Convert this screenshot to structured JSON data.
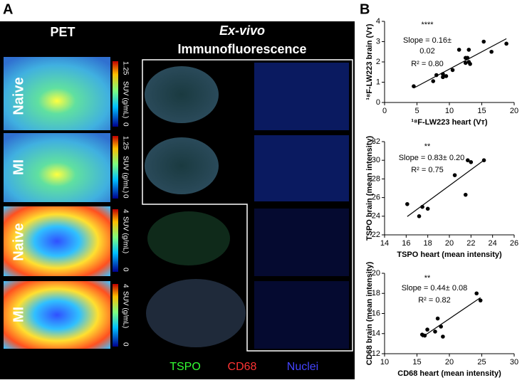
{
  "panel_a": {
    "label": "A",
    "pet_title": "PET",
    "ex_vivo": "Ex-vivo",
    "if_title": "Immunofluorescence",
    "rows": [
      {
        "label": "Naive",
        "scale_max": "1.25",
        "scale_unit": "SUV (g/mL)",
        "scale_min": "0"
      },
      {
        "label": "MI",
        "scale_max": "1.25",
        "scale_unit": "SUV (g/mL)",
        "scale_min": "0"
      },
      {
        "label": "Naive",
        "scale_max": "4",
        "scale_unit": "SUV (g/mL)",
        "scale_min": "0"
      },
      {
        "label": "MI",
        "scale_max": "4",
        "scale_unit": "SUV (g/mL)",
        "scale_min": "0"
      }
    ],
    "legend": [
      "TSPO",
      "CD68",
      "Nuclei"
    ]
  },
  "panel_b": {
    "label": "B"
  },
  "chart_data": [
    {
      "type": "scatter",
      "color": "#000000",
      "annotations": [
        "****",
        "Slope = 0.16±",
        "0.02",
        "R² = 0.80"
      ],
      "xlabel": "¹⁸F-LW223 heart (Vт)",
      "ylabel": "¹⁸F-LW223 brain (Vт)",
      "x": [
        4.5,
        7.5,
        8,
        9,
        9,
        9.5,
        10.5,
        11.5,
        12.5,
        12.5,
        13,
        12.8,
        13.2,
        13,
        15.3,
        16.5,
        18.8
      ],
      "values": [
        0.8,
        1.05,
        1.35,
        1.4,
        1.25,
        1.3,
        1.6,
        2.6,
        2.2,
        1.95,
        2.0,
        2.2,
        1.9,
        2.6,
        3.0,
        2.5,
        2.9
      ],
      "xlim": [
        0,
        20
      ],
      "xticks": [
        0,
        5,
        10,
        15,
        20
      ],
      "ylim": [
        0,
        4
      ],
      "yticks": [
        0,
        1,
        2,
        3,
        4
      ]
    },
    {
      "type": "scatter",
      "color": "#000000",
      "annotations": [
        "**",
        "Slope = 0.83± 0.20",
        "R² = 0.75"
      ],
      "xlabel": "TSPO heart (mean intensity)",
      "ylabel": "TSPO brain (mean intensity)",
      "x": [
        16.1,
        17.2,
        17.5,
        18,
        20.5,
        21.5,
        21.7,
        22,
        23.2
      ],
      "values": [
        25.3,
        24,
        25,
        24.8,
        28.4,
        26.3,
        30,
        29.8,
        30
      ],
      "xlim": [
        14,
        26
      ],
      "xticks": [
        14,
        16,
        18,
        20,
        22,
        24,
        26
      ],
      "ylim": [
        22,
        32
      ],
      "yticks": [
        22,
        24,
        26,
        28,
        30,
        32
      ]
    },
    {
      "type": "scatter",
      "color": "#000000",
      "annotations": [
        "**",
        "Slope = 0.44± 0.08",
        "R² = 0.82"
      ],
      "xlabel": "CD68 heart (mean intensity)",
      "ylabel": "CD68 brain (mean intensity)",
      "x": [
        15.8,
        16.2,
        16.6,
        17.8,
        18.2,
        18.7,
        19,
        24.2,
        24.8
      ],
      "values": [
        13.9,
        13.8,
        14.4,
        14.2,
        15.5,
        14.7,
        13.7,
        18,
        17.3
      ],
      "xlim": [
        10,
        30
      ],
      "xticks": [
        10,
        15,
        20,
        25,
        30
      ],
      "ylim": [
        12,
        20
      ],
      "yticks": [
        12,
        14,
        16,
        18,
        20
      ]
    }
  ]
}
